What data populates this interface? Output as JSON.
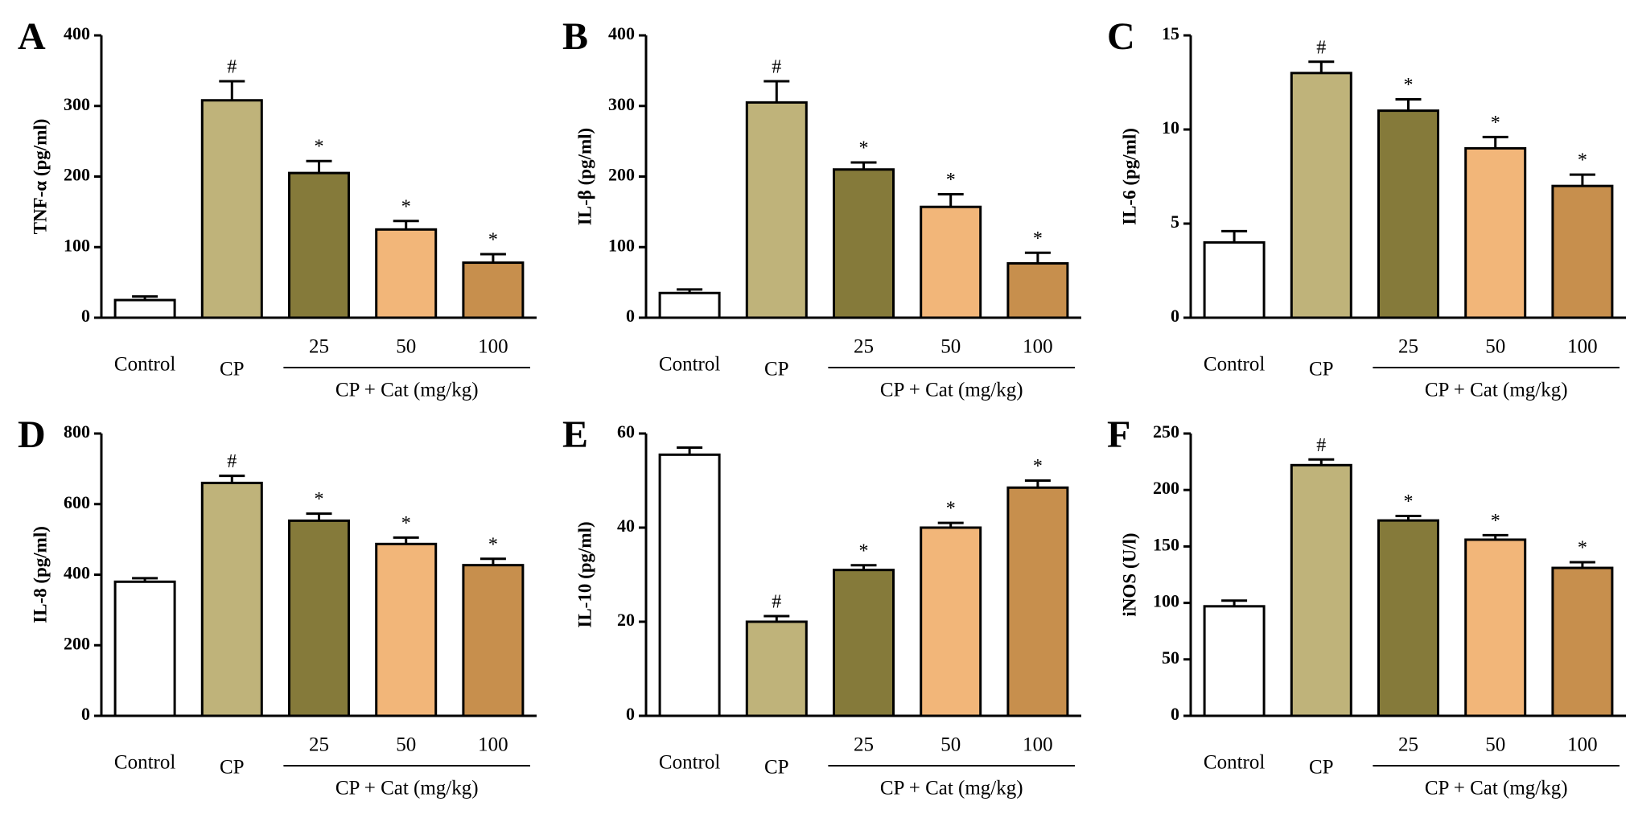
{
  "chart_data": [
    {
      "type": "bar",
      "panel_label": "A",
      "y_label": "TNF-α (pg/ml)",
      "group_label": "CP + Cat (mg/kg)",
      "categories": [
        "Control",
        "CP",
        "25",
        "50",
        "100"
      ],
      "values": [
        25,
        308,
        205,
        125,
        78
      ],
      "errors": [
        5,
        27,
        17,
        12,
        12
      ],
      "annotations": [
        null,
        "#",
        "*",
        "*",
        "*"
      ],
      "colors": [
        "#ffffff",
        "#bfb37a",
        "#857a3a",
        "#f2b679",
        "#c78f4d"
      ],
      "ylim": [
        0,
        400
      ],
      "yticks": [
        0,
        100,
        200,
        300,
        400
      ]
    },
    {
      "type": "bar",
      "panel_label": "B",
      "y_label": "IL-β (pg/ml)",
      "group_label": "CP + Cat (mg/kg)",
      "categories": [
        "Control",
        "CP",
        "25",
        "50",
        "100"
      ],
      "values": [
        35,
        305,
        210,
        157,
        77
      ],
      "errors": [
        5,
        30,
        10,
        18,
        15
      ],
      "annotations": [
        null,
        "#",
        "*",
        "*",
        "*"
      ],
      "colors": [
        "#ffffff",
        "#bfb37a",
        "#857a3a",
        "#f2b679",
        "#c78f4d"
      ],
      "ylim": [
        0,
        400
      ],
      "yticks": [
        0,
        100,
        200,
        300,
        400
      ]
    },
    {
      "type": "bar",
      "panel_label": "C",
      "y_label": "IL-6 (pg/ml)",
      "group_label": "CP + Cat (mg/kg)",
      "categories": [
        "Control",
        "CP",
        "25",
        "50",
        "100"
      ],
      "values": [
        4,
        13,
        11,
        9,
        7
      ],
      "errors": [
        0.6,
        0.6,
        0.6,
        0.6,
        0.6
      ],
      "annotations": [
        null,
        "#",
        "*",
        "*",
        "*"
      ],
      "colors": [
        "#ffffff",
        "#bfb37a",
        "#857a3a",
        "#f2b679",
        "#c78f4d"
      ],
      "ylim": [
        0,
        15
      ],
      "yticks": [
        0,
        5,
        10,
        15
      ]
    },
    {
      "type": "bar",
      "panel_label": "D",
      "y_label": "IL-8 (pg/ml)",
      "group_label": "CP + Cat (mg/kg)",
      "categories": [
        "Control",
        "CP",
        "25",
        "50",
        "100"
      ],
      "values": [
        380,
        660,
        553,
        487,
        427
      ],
      "errors": [
        10,
        20,
        20,
        18,
        18
      ],
      "annotations": [
        null,
        "#",
        "*",
        "*",
        "*"
      ],
      "colors": [
        "#ffffff",
        "#bfb37a",
        "#857a3a",
        "#f2b679",
        "#c78f4d"
      ],
      "ylim": [
        0,
        800
      ],
      "yticks": [
        0,
        200,
        400,
        600,
        800
      ]
    },
    {
      "type": "bar",
      "panel_label": "E",
      "y_label": "IL-10 (pg/ml)",
      "group_label": "CP + Cat (mg/kg)",
      "categories": [
        "Control",
        "CP",
        "25",
        "50",
        "100"
      ],
      "values": [
        55.5,
        20,
        31,
        40,
        48.5
      ],
      "errors": [
        1.5,
        1.2,
        1,
        1,
        1.5
      ],
      "annotations": [
        null,
        "#",
        "*",
        "*",
        "*"
      ],
      "colors": [
        "#ffffff",
        "#bfb37a",
        "#857a3a",
        "#f2b679",
        "#c78f4d"
      ],
      "ylim": [
        0,
        60
      ],
      "yticks": [
        0,
        20,
        40,
        60
      ]
    },
    {
      "type": "bar",
      "panel_label": "F",
      "y_label": "iNOS (U/l)",
      "group_label": "CP + Cat (mg/kg)",
      "categories": [
        "Control",
        "CP",
        "25",
        "50",
        "100"
      ],
      "values": [
        97,
        222,
        173,
        156,
        131
      ],
      "errors": [
        5,
        5,
        4,
        4,
        5
      ],
      "annotations": [
        null,
        "#",
        "*",
        "*",
        "*"
      ],
      "colors": [
        "#ffffff",
        "#bfb37a",
        "#857a3a",
        "#f2b679",
        "#c78f4d"
      ],
      "ylim": [
        0,
        250
      ],
      "yticks": [
        0,
        50,
        100,
        150,
        200,
        250
      ]
    }
  ]
}
